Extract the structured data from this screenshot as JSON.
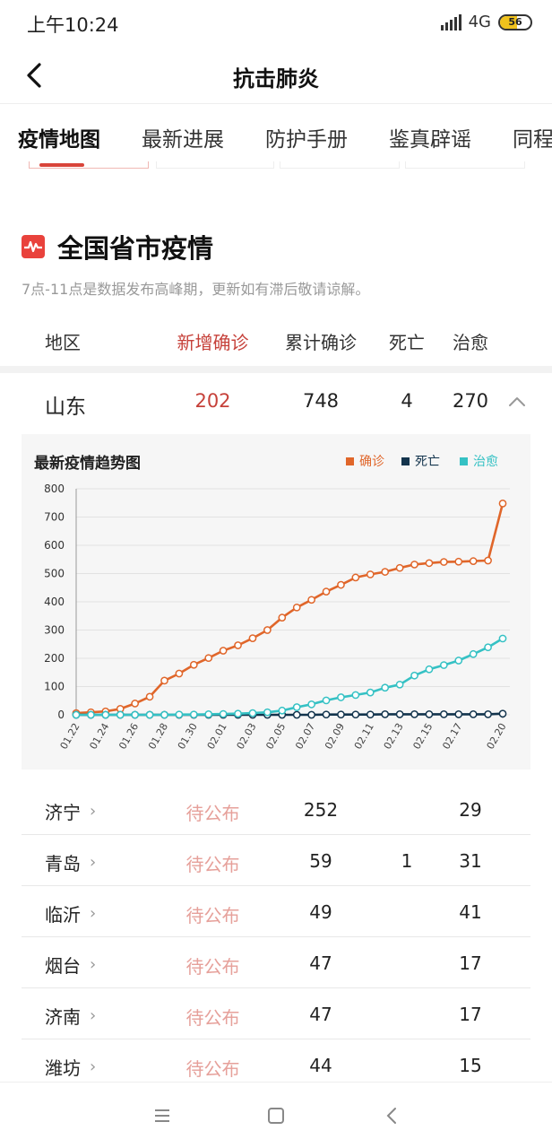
{
  "status_bar": {
    "time": "上午10:24",
    "network": "4G",
    "battery": "56",
    "battery_level": 0.56
  },
  "header": {
    "title": "抗击肺炎",
    "back_icon": "chevron-left-icon"
  },
  "tabs": [
    {
      "label": "疫情地图",
      "active": true
    },
    {
      "label": "最新进展",
      "active": false
    },
    {
      "label": "防护手册",
      "active": false
    },
    {
      "label": "鉴真辟谣",
      "active": false
    },
    {
      "label": "同程",
      "active": false
    }
  ],
  "section": {
    "icon": "pulse-icon",
    "title": "全国省市疫情",
    "note": "7点-11点是数据发布高峰期，更新如有滞后敬请谅解。"
  },
  "table_header": {
    "region": "地区",
    "new_confirmed": "新增确诊",
    "total_confirmed": "累计确诊",
    "deaths": "死亡",
    "cured": "治愈"
  },
  "region": {
    "name": "山东",
    "new_confirmed": "202",
    "total_confirmed": "748",
    "deaths": "4",
    "cured": "270",
    "toggle_icon": "chevron-up-icon"
  },
  "chart_data": {
    "type": "line",
    "title": "最新疫情趋势图",
    "x": [
      "01.22",
      "01.23",
      "01.24",
      "01.25",
      "01.26",
      "01.27",
      "01.28",
      "01.29",
      "01.30",
      "01.31",
      "02.01",
      "02.02",
      "02.03",
      "02.04",
      "02.05",
      "02.06",
      "02.07",
      "02.08",
      "02.09",
      "02.10",
      "02.11",
      "02.12",
      "02.13",
      "02.14",
      "02.15",
      "02.16",
      "02.17",
      "02.18",
      "02.19",
      "02.20"
    ],
    "x_tick_labels": [
      "01.22",
      "01.24",
      "01.26",
      "01.28",
      "01.30",
      "02.01",
      "02.03",
      "02.05",
      "02.07",
      "02.09",
      "02.11",
      "02.13",
      "02.15",
      "02.17",
      "02.20"
    ],
    "ylim": [
      0,
      800
    ],
    "y_ticks": [
      "0",
      "100",
      "200",
      "300",
      "400",
      "500",
      "600",
      "700",
      "800"
    ],
    "grid": true,
    "legend_position": "top-right",
    "series": [
      {
        "name": "确诊",
        "color": "#e0662a",
        "values": [
          6,
          9,
          12,
          21,
          40,
          64,
          121,
          146,
          177,
          201,
          227,
          246,
          271,
          300,
          344,
          380,
          407,
          436,
          460,
          486,
          497,
          506,
          520,
          532,
          537,
          541,
          542,
          544,
          546,
          748
        ]
      },
      {
        "name": "死亡",
        "color": "#13344d",
        "values": [
          0,
          0,
          0,
          0,
          0,
          0,
          0,
          0,
          0,
          0,
          0,
          0,
          0,
          0,
          0,
          0,
          0,
          1,
          1,
          1,
          1,
          2,
          2,
          2,
          2,
          2,
          2,
          2,
          2,
          4
        ]
      },
      {
        "name": "治愈",
        "color": "#35c1c4",
        "values": [
          0,
          0,
          0,
          0,
          0,
          0,
          0,
          1,
          1,
          2,
          3,
          4,
          6,
          9,
          15,
          27,
          37,
          51,
          62,
          70,
          79,
          96,
          107,
          139,
          161,
          176,
          192,
          215,
          239,
          270
        ]
      }
    ]
  },
  "cities": [
    {
      "name": "济宁",
      "new_confirmed": "待公布",
      "total_confirmed": "252",
      "deaths": "",
      "cured": "29"
    },
    {
      "name": "青岛",
      "new_confirmed": "待公布",
      "total_confirmed": "59",
      "deaths": "1",
      "cured": "31"
    },
    {
      "name": "临沂",
      "new_confirmed": "待公布",
      "total_confirmed": "49",
      "deaths": "",
      "cured": "41"
    },
    {
      "name": "烟台",
      "new_confirmed": "待公布",
      "total_confirmed": "47",
      "deaths": "",
      "cured": "17"
    },
    {
      "name": "济南",
      "new_confirmed": "待公布",
      "total_confirmed": "47",
      "deaths": "",
      "cured": "17"
    },
    {
      "name": "潍坊",
      "new_confirmed": "待公布",
      "total_confirmed": "44",
      "deaths": "",
      "cured": "15"
    }
  ],
  "city_arrow": "›",
  "nav_bar": {
    "icons": [
      "menu-icon",
      "home-square-icon",
      "back-triangle-icon"
    ]
  }
}
